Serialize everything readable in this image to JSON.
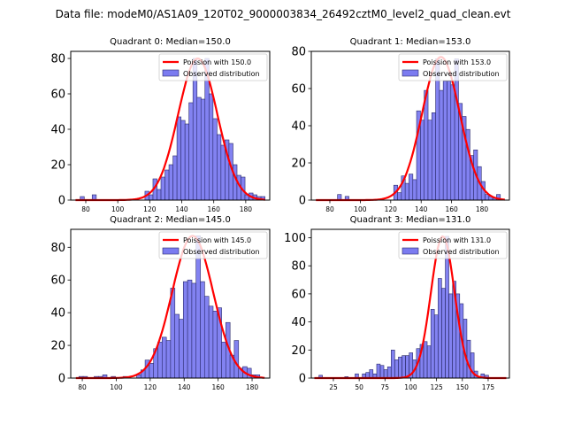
{
  "suptitle": "Data file: modeM0/AS1A09_120T02_9000003834_26492cztM0_level2_quad_clean.evt",
  "colors": {
    "bar_fill": "#7b7bf0",
    "bar_edge": "#2a2a6a",
    "poisson_line": "#ff0000"
  },
  "chart_data": [
    {
      "type": "bar",
      "title": "Quadrant 0: Median=150.0",
      "legend": [
        "Poission with 150.0",
        "Observed distribution"
      ],
      "legend_position": "top-right",
      "xlim": [
        70.6,
        195
      ],
      "ylim": [
        0,
        84
      ],
      "xticks": [
        80,
        100,
        120,
        140,
        160,
        180
      ],
      "yticks": [
        0,
        20,
        40,
        60,
        80
      ],
      "bin_width": 2.55,
      "bins_start": [
        76.5,
        84,
        117,
        119.5,
        122,
        124.5,
        127,
        129.5,
        132,
        134.5,
        137,
        139.5,
        142,
        144.5,
        147,
        149.5,
        152,
        154.5,
        157,
        159.5,
        162,
        164.5,
        167,
        169.5,
        172,
        174.5,
        177,
        179.5,
        182,
        184.5,
        187,
        189.5
      ],
      "values": [
        2,
        3,
        5,
        3,
        12,
        6,
        13,
        17,
        20,
        25,
        47,
        45,
        43,
        55,
        80,
        58,
        57,
        80,
        60,
        46,
        37,
        31,
        34,
        32,
        20,
        14,
        13,
        3,
        4,
        3,
        2,
        2
      ],
      "poisson_mean": 150,
      "poisson_peak": 80
    },
    {
      "type": "bar",
      "title": "Quadrant 1: Median=153.0",
      "legend": [
        "Poission with 153.0",
        "Observed distribution"
      ],
      "legend_position": "top-right",
      "xlim": [
        67.8,
        198
      ],
      "ylim": [
        0,
        80
      ],
      "xticks": [
        80,
        100,
        120,
        140,
        160,
        180
      ],
      "yticks": [
        0,
        20,
        40,
        60,
        80
      ],
      "bin_width": 2.55,
      "bins_start": [
        85,
        90,
        122,
        124.5,
        127,
        129.5,
        132,
        134.5,
        137,
        139.5,
        142,
        144.5,
        147,
        149.5,
        152,
        154.5,
        157,
        159.5,
        162,
        164.5,
        167,
        169.5,
        172,
        174.5,
        177,
        179.5,
        182,
        184.5,
        187,
        189.5
      ],
      "values": [
        3,
        2,
        8,
        4,
        13,
        9,
        14,
        11,
        48,
        43,
        59,
        43,
        47,
        76,
        59,
        64,
        64,
        62,
        76,
        52,
        45,
        38,
        24,
        27,
        18,
        10,
        3,
        2,
        1,
        3
      ],
      "poisson_mean": 153,
      "poisson_peak": 77
    },
    {
      "type": "bar",
      "title": "Quadrant 2: Median=145.0",
      "legend": [
        "Poission with 145.0",
        "Observed distribution"
      ],
      "legend_position": "top-right",
      "xlim": [
        73.2,
        190.4
      ],
      "ylim": [
        0,
        91
      ],
      "xticks": [
        80,
        100,
        120,
        140,
        160,
        180
      ],
      "yticks": [
        0,
        20,
        40,
        60,
        80
      ],
      "bin_width": 2.55,
      "bins_start": [
        78,
        80.5,
        87,
        89.5,
        92,
        97,
        104,
        112,
        114.5,
        117,
        119.5,
        122,
        124.5,
        127,
        129.5,
        132,
        134.5,
        137,
        139.5,
        142,
        144.5,
        147,
        149.5,
        152,
        154.5,
        157,
        159.5,
        162,
        164.5,
        167,
        169.5,
        172,
        174.5,
        177,
        179.5,
        182
      ],
      "values": [
        1,
        1,
        1,
        1,
        2,
        1,
        1,
        2,
        5,
        11,
        9,
        18,
        22,
        25,
        23,
        55,
        39,
        36,
        59,
        60,
        58,
        87,
        59,
        50,
        44,
        41,
        43,
        22,
        34,
        14,
        23,
        6,
        7,
        6,
        2,
        2
      ],
      "poisson_mean": 145,
      "poisson_peak": 87
    },
    {
      "type": "bar",
      "title": "Quadrant 3: Median=131.0",
      "legend": [
        "Poission with 131.0",
        "Observed distribution"
      ],
      "legend_position": "top-right",
      "xlim": [
        3.6,
        195.6
      ],
      "ylim": [
        0,
        106
      ],
      "xticks": [
        25,
        50,
        75,
        100,
        125,
        150,
        175
      ],
      "yticks": [
        0,
        20,
        40,
        60,
        80,
        100
      ],
      "bin_width": 3.4,
      "bins_start": [
        11,
        36,
        46,
        53,
        56.5,
        60,
        63.5,
        67,
        70.5,
        74,
        77.5,
        81,
        84.5,
        88,
        91.5,
        95,
        98.5,
        102,
        105.5,
        109,
        112.5,
        116,
        119.5,
        123,
        126.5,
        130,
        133.5,
        137,
        140.5,
        144,
        147.5,
        151,
        154.5,
        158,
        161.5,
        168,
        172
      ],
      "values": [
        2,
        1,
        3,
        3,
        4,
        6,
        3,
        10,
        9,
        6,
        8,
        20,
        13,
        15,
        16,
        16,
        18,
        13,
        21,
        24,
        26,
        23,
        49,
        45,
        71,
        64,
        101,
        60,
        69,
        60,
        53,
        42,
        27,
        18,
        5,
        3,
        2
      ],
      "poisson_mean": 131,
      "poisson_peak": 101
    }
  ]
}
